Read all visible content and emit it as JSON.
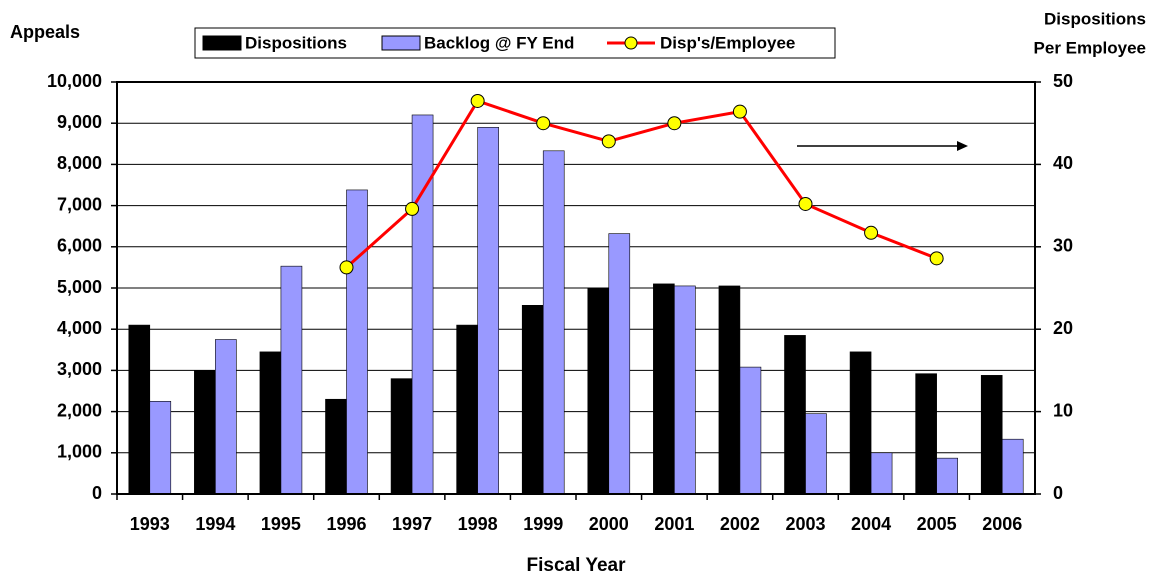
{
  "chart_data": {
    "type": "bar",
    "ylabel": "Appeals",
    "y2label": [
      "Dispositions",
      "Per Employee"
    ],
    "xlabel": "Fiscal Year",
    "categories": [
      "1993",
      "1994",
      "1995",
      "1996",
      "1997",
      "1998",
      "1999",
      "2000",
      "2001",
      "2002",
      "2003",
      "2004",
      "2005",
      "2006"
    ],
    "series": [
      {
        "name": "Dispositions",
        "type": "bar",
        "color": "#000000",
        "values": [
          4100,
          3000,
          3450,
          2300,
          2800,
          4100,
          4580,
          5000,
          5100,
          5050,
          3850,
          3450,
          2920,
          2880
        ]
      },
      {
        "name": "Backlog @ FY End",
        "type": "bar",
        "color": "#9999ff",
        "values": [
          2250,
          3750,
          5530,
          7380,
          9200,
          8900,
          8330,
          6320,
          5050,
          3080,
          1950,
          1000,
          870,
          1330
        ]
      },
      {
        "name": "Disp's/Employee",
        "type": "line",
        "axis": "y2",
        "color": "#ff0000",
        "marker_color": "#ffff00",
        "values": [
          null,
          null,
          null,
          27.5,
          34.6,
          47.7,
          45.0,
          42.8,
          45.0,
          46.4,
          35.2,
          31.7,
          28.6,
          null
        ]
      }
    ],
    "ylim": [
      0,
      10000
    ],
    "yticks": [
      0,
      {
        "value": 1000,
        "label": "1,000"
      },
      {
        "value": 2000,
        "label": "2,000"
      },
      {
        "value": 3000,
        "label": "3,000"
      },
      {
        "value": 4000,
        "label": "4,000"
      },
      {
        "value": 5000,
        "label": "5,000"
      },
      {
        "value": 6000,
        "label": "6,000"
      },
      {
        "value": 7000,
        "label": "7,000"
      },
      {
        "value": 8000,
        "label": "8,000"
      },
      {
        "value": 9000,
        "label": "9,000"
      },
      {
        "value": 10000,
        "label": "10,000"
      }
    ],
    "y2lim": [
      0,
      50
    ],
    "y2ticks": [
      0,
      10,
      20,
      30,
      40,
      50
    ],
    "grid": true
  }
}
